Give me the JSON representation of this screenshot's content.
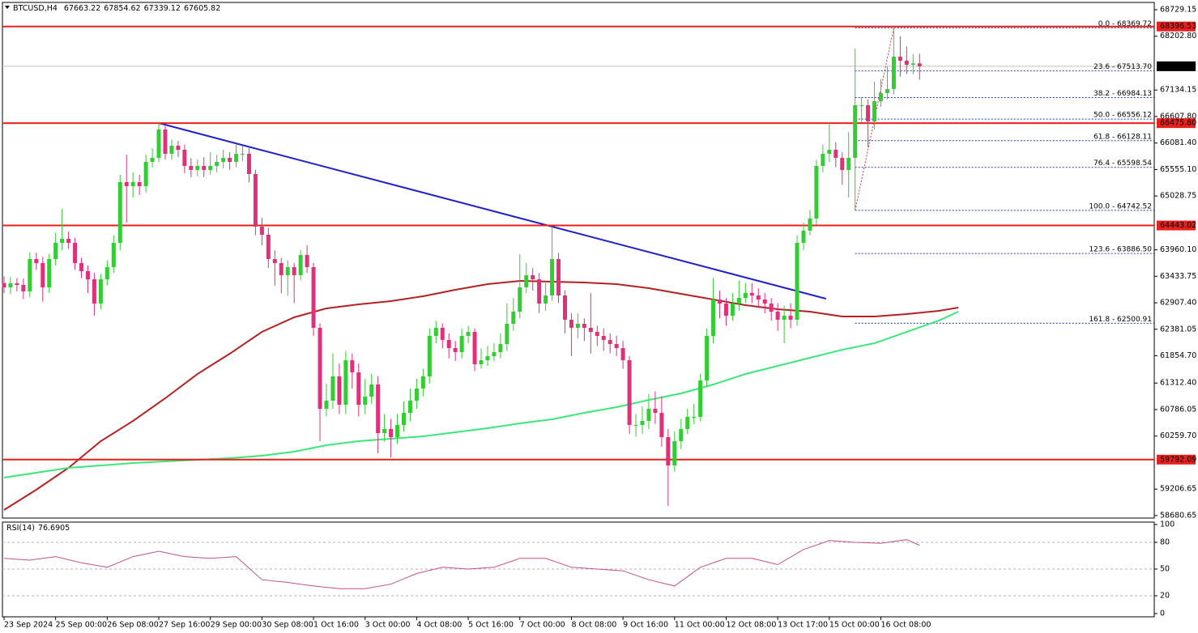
{
  "chart_data": {
    "type": "candlestick",
    "title": "BTCUSD,H4",
    "up_color": "#32cd32",
    "down_color": "#e0307a",
    "candles": [
      [
        63300,
        63430,
        63100,
        63214
      ],
      [
        63214,
        63420,
        63080,
        63294
      ],
      [
        63294,
        63400,
        63130,
        63262
      ],
      [
        63262,
        63390,
        62980,
        63133
      ],
      [
        63133,
        63910,
        63020,
        63776
      ],
      [
        63776,
        63900,
        63560,
        63696
      ],
      [
        63696,
        63820,
        62930,
        63214
      ],
      [
        63214,
        63880,
        63100,
        63776
      ],
      [
        63776,
        64300,
        63650,
        64098
      ],
      [
        64098,
        64773,
        63950,
        64178
      ],
      [
        64178,
        64320,
        63980,
        64098
      ],
      [
        64098,
        64200,
        63560,
        63696
      ],
      [
        63696,
        63800,
        63400,
        63535
      ],
      [
        63535,
        63650,
        63100,
        63374
      ],
      [
        63374,
        63500,
        62651,
        62892
      ],
      [
        62892,
        63480,
        62780,
        63374
      ],
      [
        63374,
        63750,
        63250,
        63616
      ],
      [
        63616,
        64250,
        63500,
        64098
      ],
      [
        64098,
        65450,
        63950,
        65304
      ],
      [
        65304,
        65850,
        64500,
        65224
      ],
      [
        65224,
        65500,
        65000,
        65304
      ],
      [
        65304,
        65450,
        65050,
        65224
      ],
      [
        65224,
        65850,
        65100,
        65706
      ],
      [
        65706,
        65980,
        65600,
        65786
      ],
      [
        65786,
        66478,
        65700,
        66349
      ],
      [
        66349,
        66420,
        65750,
        65867
      ],
      [
        65867,
        66150,
        65750,
        66028
      ],
      [
        66028,
        66120,
        65800,
        65947
      ],
      [
        65947,
        66050,
        65480,
        65626
      ],
      [
        65626,
        65780,
        65400,
        65545
      ],
      [
        65545,
        65750,
        65420,
        65626
      ],
      [
        65626,
        65800,
        65400,
        65545
      ],
      [
        65545,
        65900,
        65450,
        65626
      ],
      [
        65626,
        65850,
        65500,
        65706
      ],
      [
        65706,
        65950,
        65580,
        65786
      ],
      [
        65786,
        65900,
        65550,
        65706
      ],
      [
        65706,
        66050,
        65600,
        65867
      ],
      [
        65867,
        66020,
        65720,
        65867
      ],
      [
        65867,
        65980,
        65300,
        65465
      ],
      [
        65465,
        65550,
        64250,
        64420
      ],
      [
        64420,
        64600,
        64050,
        64259
      ],
      [
        64259,
        64400,
        63600,
        63776
      ],
      [
        63776,
        63950,
        63250,
        63696
      ],
      [
        63696,
        63800,
        63100,
        63455
      ],
      [
        63455,
        63750,
        63050,
        63616
      ],
      [
        63616,
        63700,
        62900,
        63455
      ],
      [
        63455,
        63950,
        63350,
        63857
      ],
      [
        63857,
        64050,
        63500,
        63616
      ],
      [
        63616,
        63700,
        62250,
        62410
      ],
      [
        62410,
        62500,
        60158,
        60802
      ],
      [
        60802,
        61300,
        60650,
        60962
      ],
      [
        60962,
        61900,
        60800,
        61445
      ],
      [
        61445,
        61700,
        60700,
        60882
      ],
      [
        60882,
        61950,
        60700,
        61766
      ],
      [
        61766,
        61900,
        61200,
        61525
      ],
      [
        61525,
        61700,
        60650,
        60882
      ],
      [
        60882,
        61400,
        60700,
        61043
      ],
      [
        61043,
        61500,
        60900,
        61284
      ],
      [
        61284,
        61450,
        59917,
        60319
      ],
      [
        60319,
        60700,
        60150,
        60400
      ],
      [
        60400,
        60600,
        59837,
        60239
      ],
      [
        60239,
        60700,
        60100,
        60480
      ],
      [
        60480,
        60950,
        60350,
        60721
      ],
      [
        60721,
        61200,
        60550,
        60962
      ],
      [
        60962,
        61400,
        60800,
        61204
      ],
      [
        61204,
        61600,
        61050,
        61445
      ],
      [
        61445,
        62400,
        61300,
        62249
      ],
      [
        62249,
        62550,
        62100,
        62410
      ],
      [
        62410,
        62500,
        62000,
        62168
      ],
      [
        62168,
        62300,
        61800,
        62008
      ],
      [
        62008,
        62150,
        61750,
        61927
      ],
      [
        61927,
        62400,
        61800,
        62249
      ],
      [
        62249,
        62450,
        62100,
        62329
      ],
      [
        62329,
        62400,
        61550,
        61686
      ],
      [
        61686,
        62000,
        61600,
        61766
      ],
      [
        61766,
        62050,
        61650,
        61847
      ],
      [
        61847,
        62100,
        61750,
        61927
      ],
      [
        61927,
        62300,
        61800,
        62088
      ],
      [
        62088,
        62900,
        61950,
        62490
      ],
      [
        62490,
        63000,
        62350,
        62731
      ],
      [
        62731,
        63870,
        62600,
        63214
      ],
      [
        63214,
        63700,
        63100,
        63455
      ],
      [
        63455,
        63600,
        63150,
        63374
      ],
      [
        63374,
        63500,
        62700,
        62892
      ],
      [
        62892,
        63300,
        62750,
        63053
      ],
      [
        63053,
        64420,
        62950,
        63776
      ],
      [
        63776,
        63900,
        62900,
        63053
      ],
      [
        63053,
        63150,
        62300,
        62570
      ],
      [
        62570,
        62700,
        61850,
        62410
      ],
      [
        62410,
        62700,
        62200,
        62490
      ],
      [
        62490,
        62600,
        62150,
        62410
      ],
      [
        62410,
        63100,
        61900,
        62329
      ],
      [
        62329,
        62450,
        62050,
        62249
      ],
      [
        62249,
        62400,
        61950,
        62168
      ],
      [
        62168,
        62300,
        61900,
        62088
      ],
      [
        62088,
        62250,
        61850,
        62008
      ],
      [
        62008,
        62150,
        61600,
        61766
      ],
      [
        61766,
        61850,
        60300,
        60480
      ],
      [
        60480,
        60700,
        60250,
        60480
      ],
      [
        60480,
        60850,
        60300,
        60560
      ],
      [
        60560,
        61100,
        60400,
        60802
      ],
      [
        60802,
        61150,
        60500,
        60721
      ],
      [
        60721,
        61050,
        60050,
        60239
      ],
      [
        60239,
        60400,
        58872,
        59676
      ],
      [
        59676,
        60350,
        59550,
        60158
      ],
      [
        60158,
        60600,
        60000,
        60400
      ],
      [
        60400,
        60800,
        60300,
        60641
      ],
      [
        60641,
        60900,
        60500,
        60641
      ],
      [
        60641,
        61500,
        60550,
        61364
      ],
      [
        61364,
        62400,
        61250,
        62249
      ],
      [
        62249,
        63400,
        62100,
        62972
      ],
      [
        62972,
        63150,
        62600,
        62892
      ],
      [
        62892,
        63000,
        62450,
        62651
      ],
      [
        62651,
        63100,
        62550,
        62892
      ],
      [
        62892,
        63350,
        62750,
        63005
      ],
      [
        63005,
        63300,
        62900,
        63101
      ],
      [
        63101,
        63300,
        62900,
        63053
      ],
      [
        63053,
        63200,
        62800,
        62972
      ],
      [
        62972,
        63100,
        62700,
        62892
      ],
      [
        62892,
        63000,
        62550,
        62731
      ],
      [
        62731,
        62900,
        62350,
        62570
      ],
      [
        62570,
        62850,
        62100,
        62651
      ],
      [
        62651,
        62900,
        62400,
        62570
      ],
      [
        62570,
        64250,
        62450,
        64098
      ],
      [
        64098,
        64500,
        63950,
        64339
      ],
      [
        64339,
        64750,
        64250,
        64580
      ],
      [
        64580,
        65750,
        64450,
        65626
      ],
      [
        65626,
        66050,
        65500,
        65867
      ],
      [
        65867,
        66478,
        65700,
        65947
      ],
      [
        65947,
        66100,
        65600,
        65786
      ],
      [
        65786,
        65900,
        65250,
        65545
      ],
      [
        65545,
        66300,
        65000,
        65786
      ],
      [
        65786,
        67957,
        64742.52,
        66832
      ],
      [
        66832,
        67000,
        66500,
        66832
      ],
      [
        66832,
        66950,
        66000,
        66510
      ],
      [
        66510,
        67300,
        66350,
        66912
      ],
      [
        66912,
        67350,
        66800,
        67073
      ],
      [
        67073,
        67600,
        66950,
        67153
      ],
      [
        67153,
        68369.72,
        67050,
        67796
      ],
      [
        67796,
        68200,
        67400,
        67716
      ],
      [
        67716,
        68000,
        67450,
        67636
      ],
      [
        67636,
        67850,
        67450,
        67663.22
      ],
      [
        67663.22,
        67854.62,
        67339.12,
        67605.82
      ]
    ],
    "xlim": [
      -0.25,
      178.4
    ],
    "ylim": [
      58631,
      68874
    ],
    "xticks": [
      {
        "value": 0,
        "label": "23 Sep 2024"
      },
      {
        "value": 8,
        "label": "25 Sep 00:00"
      },
      {
        "value": 16,
        "label": "26 Sep 08:00"
      },
      {
        "value": 24,
        "label": "27 Sep 16:00"
      },
      {
        "value": 32,
        "label": "29 Sep 00:00"
      },
      {
        "value": 40,
        "label": "30 Sep 08:00"
      },
      {
        "value": 48,
        "label": "1 Oct 16:00"
      },
      {
        "value": 56,
        "label": "3 Oct 00:00"
      },
      {
        "value": 64,
        "label": "4 Oct 08:00"
      },
      {
        "value": 72,
        "label": "5 Oct 16:00"
      },
      {
        "value": 80,
        "label": "7 Oct 00:00"
      },
      {
        "value": 88,
        "label": "8 Oct 08:00"
      },
      {
        "value": 96,
        "label": "9 Oct 16:00"
      },
      {
        "value": 104,
        "label": "11 Oct 00:00"
      },
      {
        "value": 112,
        "label": "12 Oct 08:00"
      },
      {
        "value": 120,
        "label": "13 Oct 17:00"
      },
      {
        "value": 128,
        "label": "15 Oct 00:00"
      },
      {
        "value": 136,
        "label": "16 Oct 08:00"
      }
    ],
    "yticks": [
      68729.15,
      {
        "value": 68202.8,
        "label": "68202.80"
      },
      67134.15,
      {
        "value": 66607.8,
        "label": "66607.80"
      },
      {
        "value": 66081.4,
        "label": "66081.40"
      },
      {
        "value": 65555.1,
        "label": "65555.10"
      },
      65028.75,
      {
        "value": 63960.1,
        "label": "63960.10"
      },
      63433.75,
      {
        "value": 62907.4,
        "label": "62907.40"
      },
      62381.05,
      {
        "value": 61854.7,
        "label": "61854.70"
      },
      {
        "value": 61312.4,
        "label": "61312.40"
      },
      60786.05,
      {
        "value": 60259.7,
        "label": "60259.70"
      },
      59206.65,
      58680.65
    ],
    "levels": [
      68396.53,
      {
        "value": 66475.8,
        "label": "66475.80"
      },
      64443.02,
      59792.09
    ],
    "level_color": "#e8201c",
    "fib": {
      "color": "#2238a8",
      "anchor_color": "#e03030",
      "x": [
        132,
        138
      ],
      "levels": [
        {
          "value": 68369.72,
          "label": "0.0 - 68369.72"
        },
        {
          "value": 67513.7,
          "label": "23.6 - 67513.70"
        },
        {
          "value": 66984.13,
          "label": "38.2 - 66984.13"
        },
        {
          "value": 66556.12,
          "label": "50.0 - 66556.12"
        },
        {
          "value": 66128.11,
          "label": "61.8 - 66128.11"
        },
        {
          "value": 65598.54,
          "label": "76.4 - 65598.54"
        },
        {
          "value": 64742.52,
          "label": "100.0 - 64742.52"
        },
        {
          "value": 63886.5,
          "label": "123.6 - 63886.50"
        },
        {
          "value": 62500.91,
          "label": "161.8 - 62500.91"
        }
      ]
    },
    "trendline": {
      "color": "#2020c8",
      "x": [
        24,
        127.5
      ],
      "values": [
        66478,
        62988
      ]
    },
    "ma": {
      "x": [
        0,
        5,
        10,
        15,
        20,
        25,
        30,
        35,
        40,
        45,
        50,
        55,
        60,
        65,
        70,
        75,
        80,
        85,
        90,
        95,
        100,
        105,
        110,
        115,
        120,
        125,
        130,
        135,
        140,
        145,
        148
      ],
      "series": [
        {
          "color": "#b22222",
          "values": [
            58792,
            59194,
            59628,
            60158,
            60560,
            61011,
            61493,
            61895,
            62329,
            62619,
            62796,
            62876,
            62940,
            63037,
            63165,
            63278,
            63342,
            63326,
            63310,
            63278,
            63198,
            63085,
            62972,
            62860,
            62779,
            62731,
            62635,
            62635,
            62683,
            62747,
            62812
          ]
        },
        {
          "color": "#3ce67a",
          "values": [
            59435,
            59531,
            59628,
            59676,
            59724,
            59756,
            59789,
            59821,
            59869,
            59949,
            60078,
            60158,
            60207,
            60255,
            60335,
            60416,
            60512,
            60593,
            60721,
            60834,
            60978,
            61107,
            61284,
            61493,
            61654,
            61815,
            61975,
            62104,
            62329,
            62554,
            62731
          ]
        }
      ]
    },
    "rsi": {
      "title": "RSI(14)",
      "color": "#c0508a",
      "ylim": [
        0,
        100
      ],
      "yticks": [
        100,
        80,
        50,
        20,
        0
      ],
      "x": [
        0,
        4,
        8,
        12,
        16,
        20,
        24,
        28,
        32,
        36,
        40,
        44,
        48,
        52,
        56,
        60,
        64,
        68,
        72,
        76,
        80,
        84,
        88,
        92,
        96,
        100,
        104,
        108,
        112,
        116,
        120,
        124,
        128,
        132,
        136,
        140,
        142
      ],
      "values": [
        62,
        60,
        64,
        57,
        52,
        64,
        70,
        64,
        62,
        64,
        38,
        35,
        31,
        28,
        28,
        33,
        45,
        52,
        50,
        52,
        62,
        62,
        52,
        50,
        48,
        38,
        31,
        52,
        62,
        62,
        55,
        72,
        82,
        80,
        79,
        83,
        76.6905
      ]
    }
  }
}
